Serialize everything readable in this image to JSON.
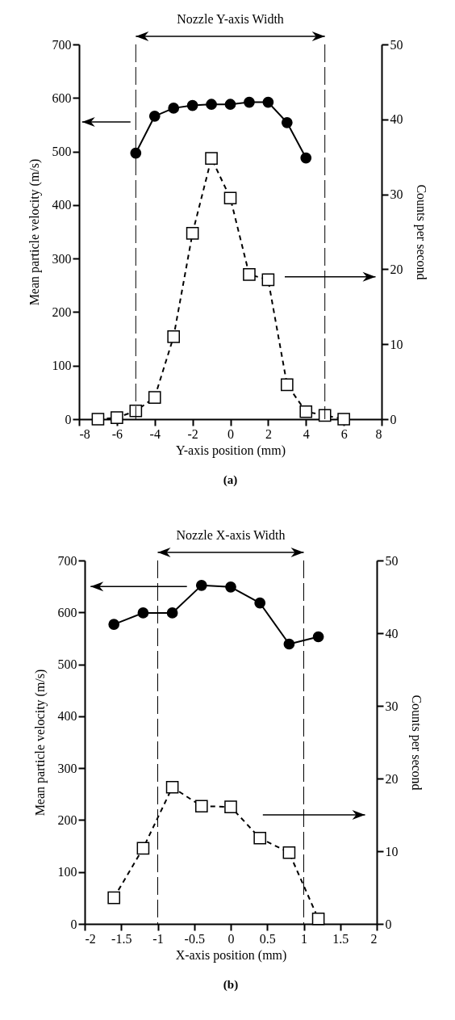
{
  "chart_data": [
    {
      "type": "line",
      "xlabel": "Y-axis position (mm)",
      "ylabel": "Mean particle velocity (m/s)",
      "y2label": "Counts per second",
      "series": [
        {
          "type": "line",
          "color": "#000000",
          "marker": "circle",
          "line_style": "solid",
          "x": [
            -5,
            -4,
            -3,
            -2,
            -1,
            0,
            1,
            2,
            3,
            4
          ],
          "values": [
            497,
            566,
            581,
            586,
            588,
            588,
            592,
            592,
            554,
            488
          ]
        },
        {
          "type": "line",
          "color": "#000000",
          "marker": "square",
          "line_style": "dashed",
          "axis": "y2",
          "x": [
            -7,
            -6,
            -5,
            -4,
            -3,
            -2,
            -1,
            0,
            1,
            2,
            3,
            4,
            5,
            6
          ],
          "values": [
            0,
            0.2,
            1.1,
            2.9,
            11.0,
            24.8,
            34.8,
            29.5,
            19.3,
            18.6,
            4.6,
            1.0,
            0.5,
            0
          ]
        }
      ],
      "xlim": [
        -8,
        8
      ],
      "xticks": [
        -8,
        -6,
        -4,
        -2,
        0,
        2,
        4,
        6,
        8
      ],
      "ylim": [
        0,
        700
      ],
      "yticks": [
        0,
        100,
        200,
        300,
        400,
        500,
        600,
        700
      ],
      "y2lim": [
        0,
        50
      ],
      "y2ticks": [
        0,
        10,
        20,
        30,
        40,
        50
      ],
      "ref_lines": [
        {
          "axis": "x",
          "value": -5,
          "line_style": "dashed",
          "color": "#000000"
        },
        {
          "axis": "x",
          "value": 5,
          "line_style": "dashed",
          "color": "#000000"
        }
      ],
      "annotations": [
        "Nozzle Y-axis Width",
        "(a)"
      ]
    },
    {
      "type": "line",
      "xlabel": "X-axis position (mm)",
      "ylabel": "Mean particle velocity (m/s)",
      "y2label": "Counts per second",
      "series": [
        {
          "type": "line",
          "color": "#000000",
          "marker": "circle",
          "line_style": "solid",
          "x": [
            -1.6,
            -1.2,
            -0.8,
            -0.4,
            0,
            0.4,
            0.8,
            1.2
          ],
          "values": [
            577,
            599,
            599,
            652,
            649,
            618,
            539,
            553
          ]
        },
        {
          "type": "line",
          "color": "#000000",
          "marker": "square",
          "line_style": "dashed",
          "axis": "y2",
          "x": [
            -1.6,
            -1.2,
            -0.8,
            -0.4,
            0,
            0.4,
            0.8,
            1.2
          ],
          "values": [
            3.6,
            10.4,
            18.8,
            16.2,
            16.1,
            11.8,
            9.8,
            0.7
          ]
        }
      ],
      "xlim": [
        -2,
        2
      ],
      "xticks": [
        -2,
        -1.5,
        -1,
        -0.5,
        0,
        0.5,
        1,
        1.5,
        2
      ],
      "ylim": [
        0,
        700
      ],
      "yticks": [
        0,
        100,
        200,
        300,
        400,
        500,
        600,
        700
      ],
      "y2lim": [
        0,
        50
      ],
      "y2ticks": [
        0,
        10,
        20,
        30,
        40,
        50
      ],
      "ref_lines": [
        {
          "axis": "x",
          "value": -1,
          "line_style": "dashed",
          "color": "#000000"
        },
        {
          "axis": "x",
          "value": 1,
          "line_style": "dashed",
          "color": "#000000"
        }
      ],
      "annotations": [
        "Nozzle X-axis Width",
        "(b)"
      ]
    }
  ]
}
